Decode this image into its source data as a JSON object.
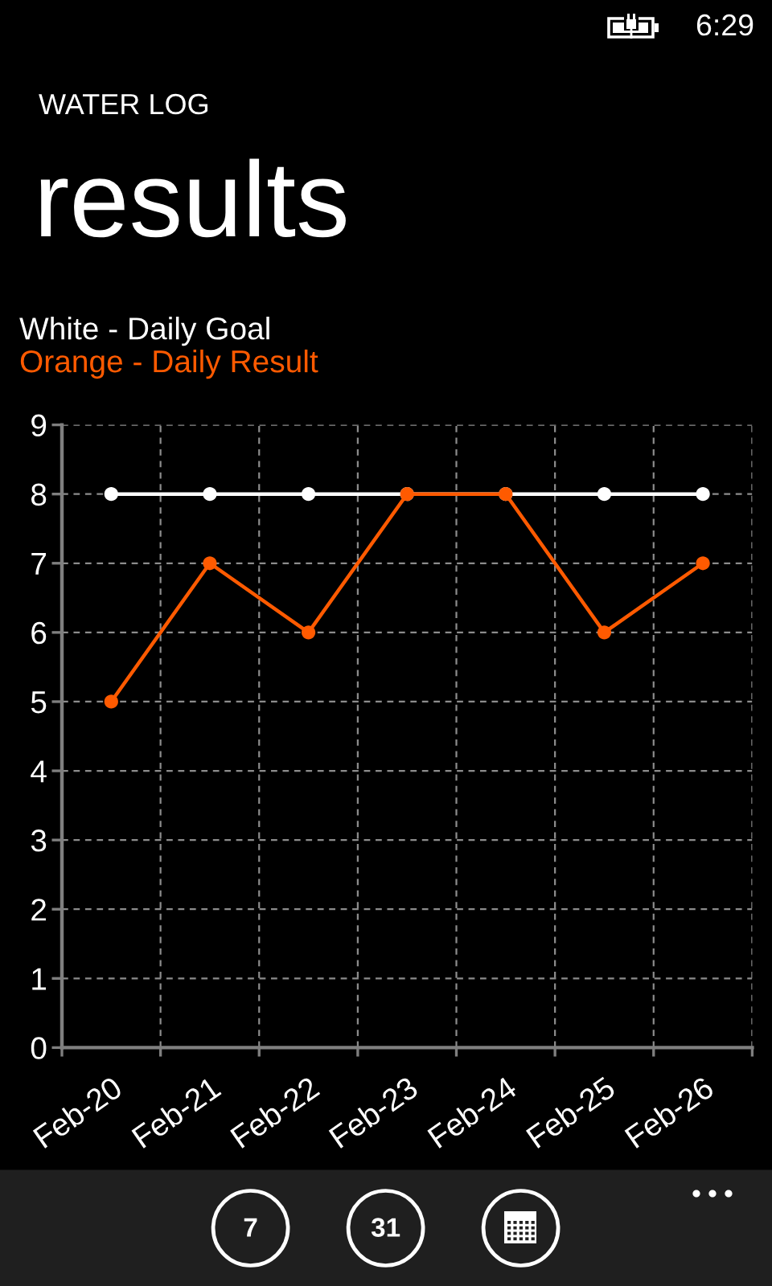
{
  "chart_data": {
    "type": "line",
    "title": "WATER LOG",
    "subtitle": "results",
    "categories": [
      "Feb-20",
      "Feb-21",
      "Feb-22",
      "Feb-23",
      "Feb-24",
      "Feb-25",
      "Feb-26"
    ],
    "series": [
      {
        "name": "White - Daily Goal",
        "color": "#ffffff",
        "values": [
          8,
          8,
          8,
          8,
          8,
          8,
          8
        ]
      },
      {
        "name": "Orange - Daily Result",
        "color": "#ff5a00",
        "values": [
          5,
          7,
          6,
          8,
          8,
          6,
          7
        ]
      }
    ],
    "ylim": [
      0,
      9
    ],
    "yticks": [
      0,
      1,
      2,
      3,
      4,
      5,
      6,
      7,
      8,
      9
    ],
    "grid": true,
    "legend": "top left",
    "marker": "circle",
    "line_style": "solid",
    "annotations": [
      "6:29",
      "7",
      "31"
    ]
  }
}
